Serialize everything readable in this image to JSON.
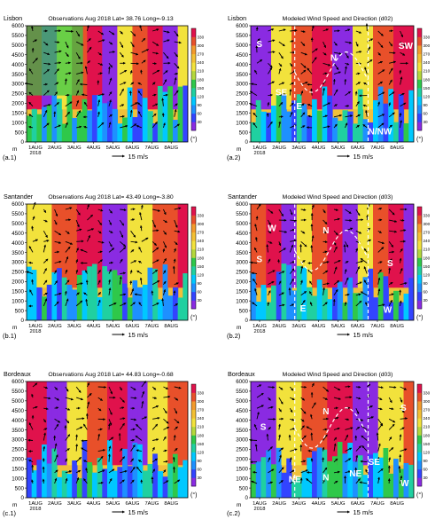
{
  "figure": {
    "panels": [
      {
        "id": "a1",
        "location": "Lisbon",
        "title": "Observations Aug 2018 Lat= 38.76 Long=-9.13",
        "tag": "(a.1)",
        "kind": "obs",
        "labels": []
      },
      {
        "id": "a2",
        "location": "Lisbon",
        "title": "Modeled Wind Speed and Direction (d02)",
        "tag": "(a.2)",
        "kind": "model",
        "labels": [
          {
            "t": "S",
            "d": 0.3,
            "h": 4900
          },
          {
            "t": "N",
            "d": 4.2,
            "h": 4200
          },
          {
            "t": "SW",
            "d": 7.8,
            "h": 4800
          },
          {
            "t": "SE",
            "d": 1.3,
            "h": 2400
          },
          {
            "t": "E",
            "d": 2.4,
            "h": 1700
          },
          {
            "t": "N/NW",
            "d": 6.2,
            "h": 400
          }
        ]
      },
      {
        "id": "b1",
        "location": "Santander",
        "title": "Observations Aug 2018 Lat= 43.49 Long=-3.80",
        "tag": "(b.1)",
        "kind": "obs",
        "labels": []
      },
      {
        "id": "b2",
        "location": "Santander",
        "title": "Modeled Wind Speed and Direction (d03)",
        "tag": "(b.2)",
        "kind": "model",
        "labels": [
          {
            "t": "W",
            "d": 0.9,
            "h": 4600
          },
          {
            "t": "N",
            "d": 3.8,
            "h": 4500
          },
          {
            "t": "S",
            "d": 0.3,
            "h": 3000
          },
          {
            "t": "S",
            "d": 7.2,
            "h": 2800
          },
          {
            "t": "E",
            "d": 2.6,
            "h": 450
          },
          {
            "t": "W",
            "d": 7.0,
            "h": 400
          }
        ]
      },
      {
        "id": "c1",
        "location": "Bordeaux",
        "title": "Observations Aug 2018 Lat= 44.83 Long=-0.68",
        "tag": "(c.1)",
        "kind": "obs",
        "labels": []
      },
      {
        "id": "c2",
        "location": "Bordeaux",
        "title": "Modeled Wind Speed and Direction (d03)",
        "tag": "(c.2)",
        "kind": "model",
        "labels": [
          {
            "t": "N",
            "d": 3.8,
            "h": 4300
          },
          {
            "t": "S",
            "d": 7.9,
            "h": 4500
          },
          {
            "t": "S",
            "d": 0.5,
            "h": 3500
          },
          {
            "t": "NE",
            "d": 2.0,
            "h": 800
          },
          {
            "t": "N",
            "d": 3.8,
            "h": 900
          },
          {
            "t": "NE",
            "d": 5.2,
            "h": 1100
          },
          {
            "t": "SE",
            "d": 6.2,
            "h": 1700
          },
          {
            "t": "W",
            "d": 7.9,
            "h": 600
          }
        ]
      }
    ],
    "x_ticks": [
      "1AUG",
      "2AUG",
      "3AUG",
      "4AUG",
      "5AUG",
      "6AUG",
      "7AUG",
      "8AUG"
    ],
    "x_year": "2018",
    "y_unit": "m",
    "y_ticks": [
      0,
      500,
      1000,
      1500,
      2000,
      2500,
      3000,
      3500,
      4000,
      4500,
      5000,
      5500,
      6000
    ],
    "ref_arrow_label": "15 m/s",
    "colorbar_ticks": [
      30,
      60,
      90,
      120,
      150,
      180,
      210,
      240,
      270,
      300,
      330
    ],
    "colorbar_unit": "(°)"
  },
  "chart_data": [
    {
      "type": "heatmap",
      "title": "Observations Aug 2018 Lat= 38.76 Long=-9.13",
      "location": "Lisbon",
      "x": [
        "1AUG",
        "2AUG",
        "3AUG",
        "4AUG",
        "5AUG",
        "6AUG",
        "7AUG",
        "8AUG"
      ],
      "ylabel": "m",
      "ylim": [
        0,
        6000
      ],
      "colorbar": "wind direction (°)",
      "clim": [
        30,
        330
      ],
      "overlay": "wind vectors"
    },
    {
      "type": "heatmap",
      "title": "Modeled Wind Speed and Direction (d02)",
      "location": "Lisbon",
      "x": [
        "1AUG",
        "2AUG",
        "3AUG",
        "4AUG",
        "5AUG",
        "6AUG",
        "7AUG",
        "8AUG"
      ],
      "ylabel": "m",
      "ylim": [
        0,
        6000
      ],
      "clim": [
        30,
        330
      ],
      "overlay": "wind vectors",
      "annotations": [
        "S",
        "N",
        "SW",
        "SE",
        "E",
        "N/NW"
      ]
    },
    {
      "type": "heatmap",
      "title": "Observations Aug 2018 Lat= 43.49 Long=-3.80",
      "location": "Santander",
      "x": [
        "1AUG",
        "2AUG",
        "3AUG",
        "4AUG",
        "5AUG",
        "6AUG",
        "7AUG",
        "8AUG"
      ],
      "ylabel": "m",
      "ylim": [
        0,
        6000
      ],
      "clim": [
        30,
        330
      ],
      "overlay": "wind vectors"
    },
    {
      "type": "heatmap",
      "title": "Modeled Wind Speed and Direction (d03)",
      "location": "Santander",
      "x": [
        "1AUG",
        "2AUG",
        "3AUG",
        "4AUG",
        "5AUG",
        "6AUG",
        "7AUG",
        "8AUG"
      ],
      "ylabel": "m",
      "ylim": [
        0,
        6000
      ],
      "clim": [
        30,
        330
      ],
      "overlay": "wind vectors",
      "annotations": [
        "W",
        "N",
        "S",
        "S",
        "E",
        "W"
      ]
    },
    {
      "type": "heatmap",
      "title": "Observations Aug 2018 Lat= 44.83 Long=-0.68",
      "location": "Bordeaux",
      "x": [
        "1AUG",
        "2AUG",
        "3AUG",
        "4AUG",
        "5AUG",
        "6AUG",
        "7AUG",
        "8AUG"
      ],
      "ylabel": "m",
      "ylim": [
        0,
        6000
      ],
      "clim": [
        30,
        330
      ],
      "overlay": "wind vectors"
    },
    {
      "type": "heatmap",
      "title": "Modeled Wind Speed and Direction (d03)",
      "location": "Bordeaux",
      "x": [
        "1AUG",
        "2AUG",
        "3AUG",
        "4AUG",
        "5AUG",
        "6AUG",
        "7AUG",
        "8AUG"
      ],
      "ylabel": "m",
      "ylim": [
        0,
        6000
      ],
      "clim": [
        30,
        330
      ],
      "overlay": "wind vectors",
      "annotations": [
        "N",
        "S",
        "S",
        "NE",
        "N",
        "NE",
        "SE",
        "W"
      ]
    }
  ],
  "palette": [
    "#8a2be2",
    "#3344ff",
    "#1e90ff",
    "#00c8ff",
    "#20d0a0",
    "#2fc84a",
    "#b4d83c",
    "#f2e23c",
    "#f3c034",
    "#f39a2c",
    "#e8502a",
    "#e0124c"
  ]
}
